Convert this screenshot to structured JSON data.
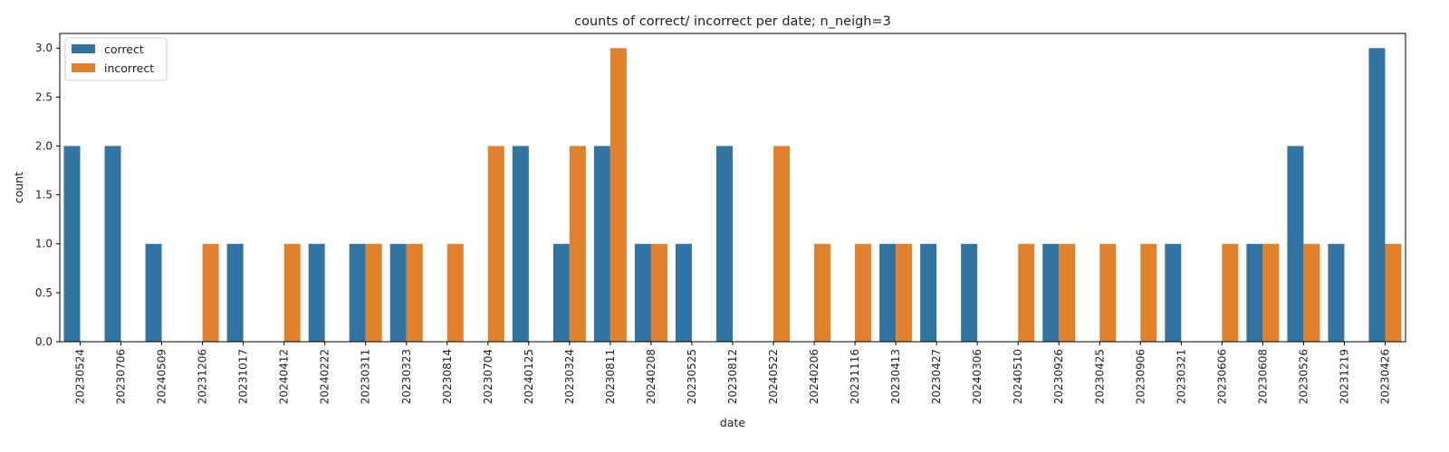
{
  "chart_data": {
    "type": "bar",
    "title": "counts of correct/ incorrect per date; n_neigh=3",
    "xlabel": "date",
    "ylabel": "count",
    "ylim": [
      0,
      3.15
    ],
    "yticks": [
      "0.0",
      "0.5",
      "1.0",
      "1.5",
      "2.0",
      "2.5",
      "3.0"
    ],
    "grid": false,
    "legend_position": "top-left",
    "categories": [
      "20230524",
      "20230706",
      "20240509",
      "20231206",
      "20231017",
      "20240412",
      "20240222",
      "20230311",
      "20230323",
      "20230814",
      "20230704",
      "20240125",
      "20230324",
      "20230811",
      "20240208",
      "20230525",
      "20230812",
      "20240522",
      "20240206",
      "20231116",
      "20230413",
      "20230427",
      "20240306",
      "20240510",
      "20230926",
      "20230425",
      "20230906",
      "20230321",
      "20230606",
      "20230608",
      "20230526",
      "20231219",
      "20230426"
    ],
    "series": [
      {
        "name": "correct",
        "color": "#3274a1",
        "values": [
          2,
          2,
          1,
          0,
          1,
          0,
          1,
          1,
          1,
          0,
          0,
          2,
          1,
          2,
          1,
          1,
          2,
          0,
          0,
          0,
          1,
          1,
          1,
          0,
          1,
          0,
          0,
          1,
          0,
          1,
          2,
          1,
          3
        ]
      },
      {
        "name": "incorrect",
        "color": "#e1812c",
        "values": [
          0,
          0,
          0,
          1,
          0,
          1,
          0,
          1,
          1,
          1,
          2,
          0,
          2,
          3,
          1,
          0,
          0,
          2,
          1,
          1,
          1,
          0,
          0,
          1,
          1,
          1,
          1,
          0,
          1,
          1,
          1,
          0,
          1
        ]
      }
    ]
  }
}
